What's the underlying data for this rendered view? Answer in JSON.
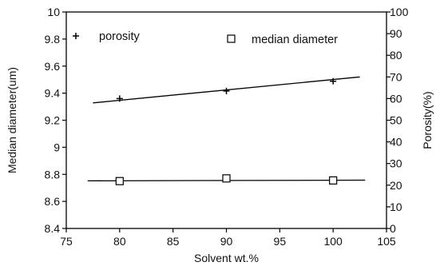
{
  "chart_data": {
    "type": "scatter",
    "xlabel": "Solvent wt.%",
    "ylabel_left": "Median diameter(um)",
    "ylabel_right": "Porosity(%)",
    "xlim": [
      75,
      105
    ],
    "ylim_left": [
      8.4,
      10
    ],
    "ylim_right": [
      0,
      100
    ],
    "x_ticks": [
      "75",
      "80",
      "85",
      "90",
      "95",
      "100",
      "105"
    ],
    "y_left_ticks": [
      "8.4",
      "8.6",
      "8.8",
      "9",
      "9.2",
      "9.4",
      "9.6",
      "9.8",
      "10"
    ],
    "y_right_ticks": [
      "0",
      "10",
      "20",
      "30",
      "40",
      "50",
      "60",
      "70",
      "80",
      "90",
      "100"
    ],
    "grid": false,
    "legend_position": "top",
    "series": [
      {
        "name": "porosity",
        "marker": "+",
        "axis": "right",
        "x": [
          80,
          90,
          100
        ],
        "y": [
          60,
          63.5,
          68
        ],
        "trendline": {
          "x": [
            77.5,
            102.5
          ],
          "y": [
            58,
            70
          ]
        }
      },
      {
        "name": "median diameter",
        "marker": "square",
        "axis": "left",
        "x": [
          80,
          90,
          100
        ],
        "y": [
          8.75,
          8.77,
          8.755
        ],
        "trendline": {
          "x": [
            77,
            103
          ],
          "y": [
            8.752,
            8.757
          ]
        }
      }
    ]
  }
}
